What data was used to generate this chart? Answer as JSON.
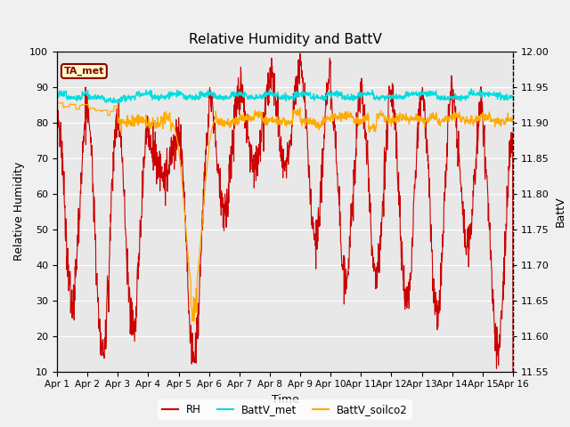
{
  "title": "Relative Humidity and BattV",
  "xlabel": "Time",
  "ylabel_left": "Relative Humidity",
  "ylabel_right": "BattV",
  "ylim_left": [
    10,
    100
  ],
  "ylim_right": [
    11.55,
    12.0
  ],
  "x_ticks": [
    "Apr 1",
    "Apr 2",
    "Apr 3",
    "Apr 4",
    "Apr 5",
    "Apr 6",
    "Apr 7",
    "Apr 8",
    "Apr 9",
    "Apr 10",
    "Apr 11",
    "Apr 12",
    "Apr 13",
    "Apr 14",
    "Apr 15",
    "Apr 16"
  ],
  "background_color": "#f0f0f0",
  "plot_bg_color": "#e8e8e8",
  "grid_color": "#ffffff",
  "annotation_text": "TA_met",
  "annotation_bg": "#ffffcc",
  "annotation_border": "#8b0000",
  "colors": {
    "RH": "#cc0000",
    "BattV_met": "#00dddd",
    "BattV_soilco2": "#ffaa00"
  },
  "rh_yticks": [
    10,
    20,
    30,
    40,
    50,
    60,
    70,
    80,
    90,
    100
  ],
  "batt_yticks": [
    11.55,
    11.6,
    11.65,
    11.7,
    11.75,
    11.8,
    11.85,
    11.9,
    11.95,
    12.0
  ],
  "figsize": [
    6.4,
    4.8
  ],
  "dpi": 100
}
